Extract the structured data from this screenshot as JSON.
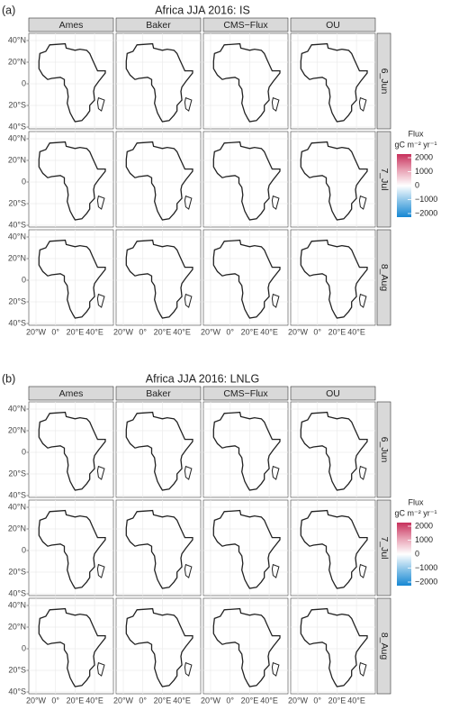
{
  "panels": [
    {
      "label": "(a)",
      "title": "Africa JJA 2016: IS",
      "columns": [
        "Ames",
        "Baker",
        "CMS−Flux",
        "OU"
      ],
      "rows": [
        "6_Jun",
        "7_Jul",
        "8_Aug"
      ]
    },
    {
      "label": "(b)",
      "title": "Africa JJA 2016: LNLG",
      "columns": [
        "Ames",
        "Baker",
        "CMS−Flux",
        "OU"
      ],
      "rows": [
        "6_Jun",
        "7_Jul",
        "8_Aug"
      ]
    }
  ],
  "axes": {
    "lat_labels": [
      "40°N",
      "20°N",
      "0",
      "20°S",
      "40°S"
    ],
    "lon_labels": [
      "20°W",
      "0°",
      "20°E",
      "40°E"
    ]
  },
  "legend": {
    "title": "Flux",
    "unit": "gC m⁻² yr⁻¹",
    "ticks": [
      "2000",
      "1000",
      "0",
      "−1000",
      "−2000"
    ],
    "colors": [
      "#c7305b",
      "#e8a0b3",
      "#ffffff",
      "#86c2e8",
      "#1687d3"
    ]
  }
}
